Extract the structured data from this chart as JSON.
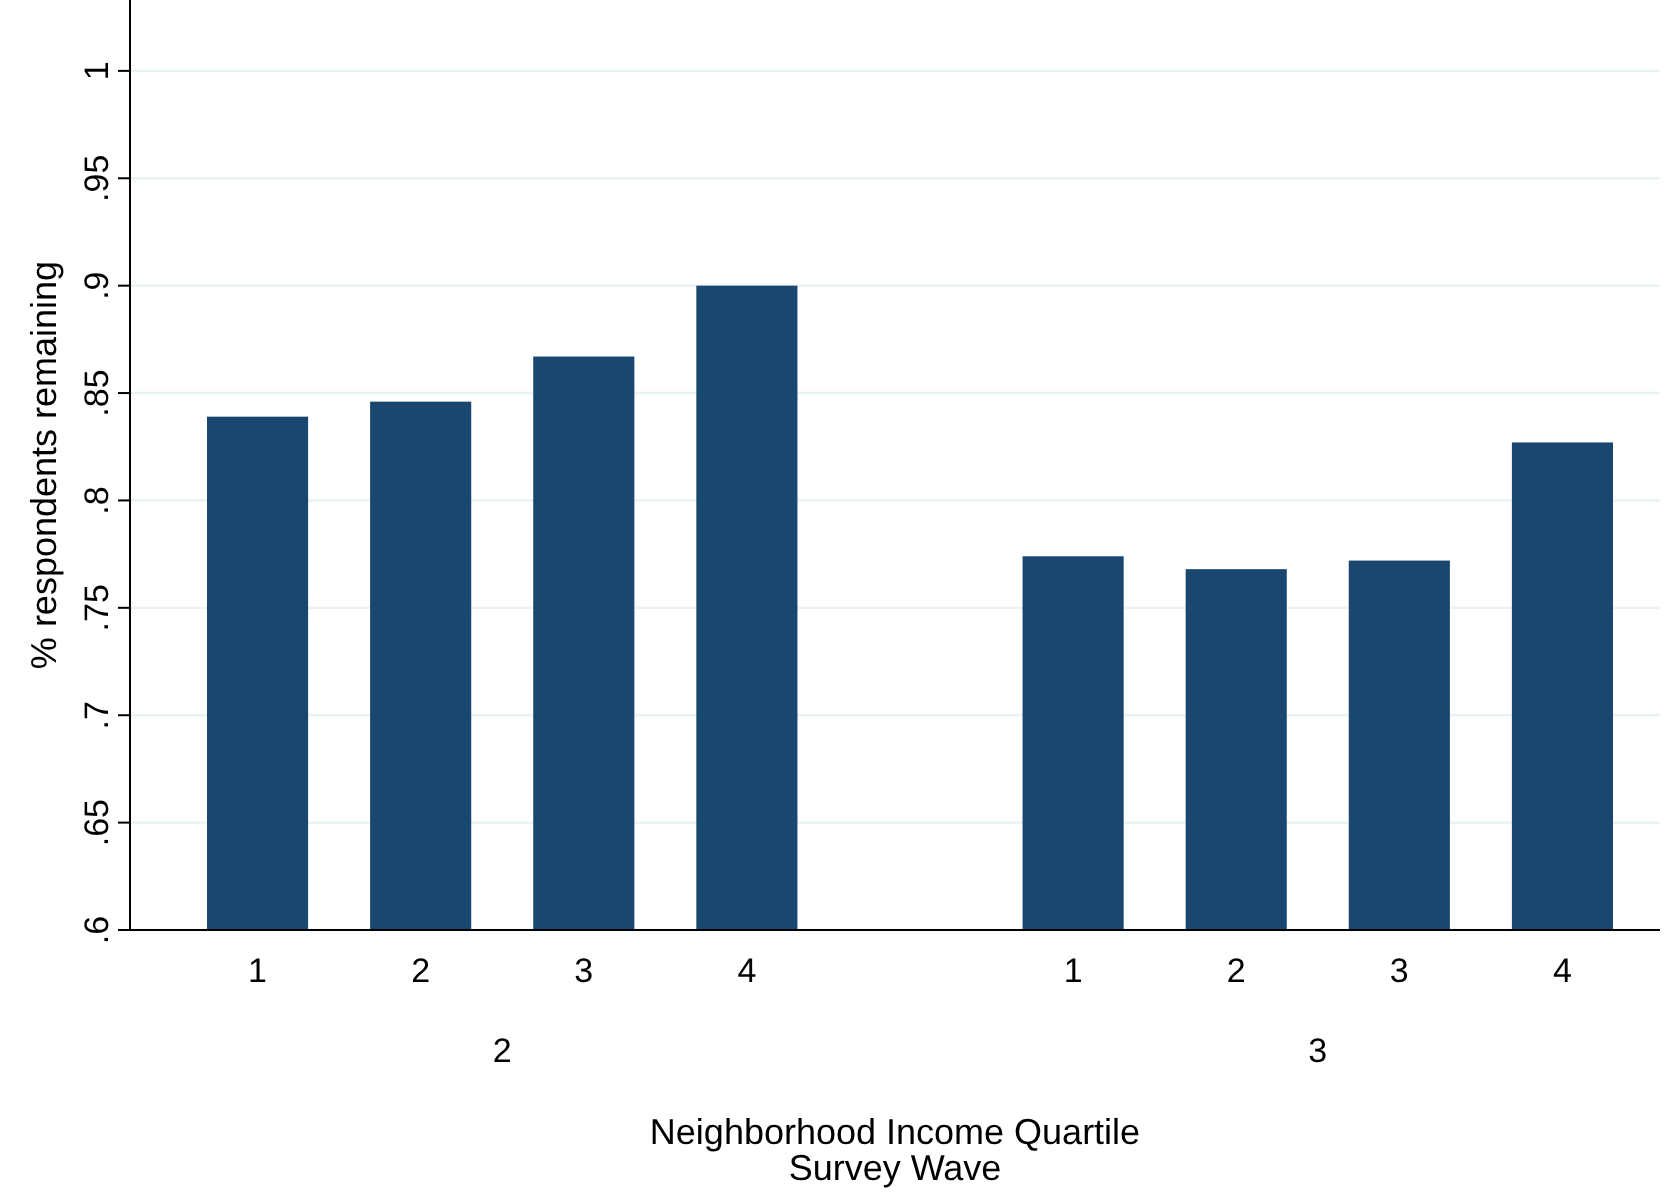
{
  "chart_data": {
    "type": "bar",
    "xlabel": "Neighborhood Income Quartile",
    "ylabel": "% respondents remaining",
    "categories": [
      "1",
      "2",
      "3",
      "4",
      null,
      "1",
      "2",
      "3",
      "4"
    ],
    "values": [
      0.839,
      0.846,
      0.867,
      0.9,
      null,
      0.774,
      0.768,
      0.772,
      0.827
    ],
    "color": "#1a476f",
    "ylim": [
      0.6,
      1.033
    ],
    "yticks": [
      {
        "value": 0.6,
        "label": ".6"
      },
      {
        "value": 0.65,
        "label": ".65"
      },
      {
        "value": 0.7,
        "label": ".7"
      },
      {
        "value": 0.75,
        "label": ".75"
      },
      {
        "value": 0.8,
        "label": ".8"
      },
      {
        "value": 0.85,
        "label": ".85"
      },
      {
        "value": 0.9,
        "label": ".9"
      },
      {
        "value": 0.95,
        "label": ".95"
      },
      {
        "value": 1,
        "label": "1"
      }
    ],
    "grid": "y",
    "annotations": [
      "2",
      "3",
      "Survey Wave"
    ]
  }
}
